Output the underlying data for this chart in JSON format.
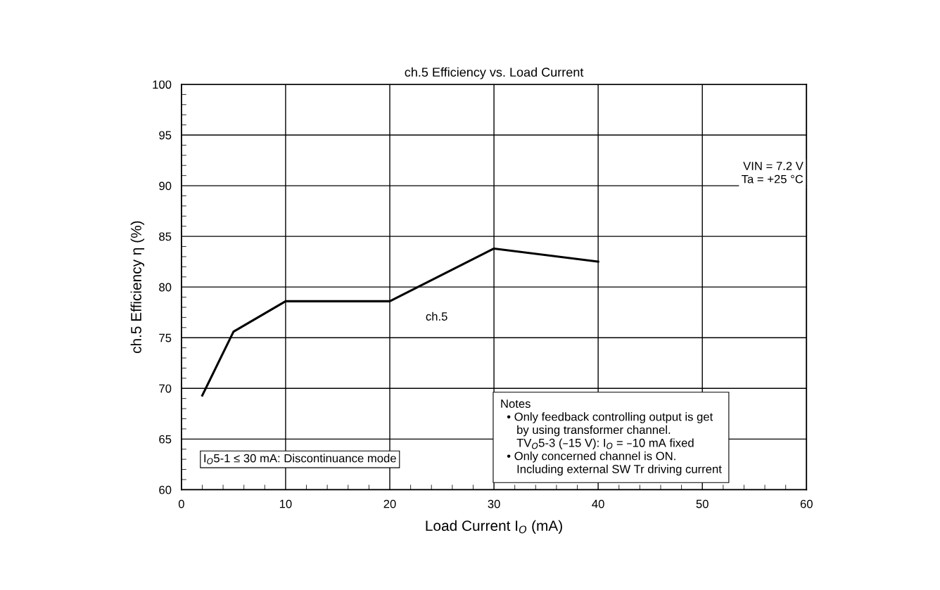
{
  "chart_data": {
    "type": "line",
    "title": "ch.5 Efficiency vs. Load Current",
    "xlabel": "Load Current I$_{O}$ (mA)",
    "ylabel": "ch.5 Efficiency η (%)",
    "x": [
      2,
      5,
      10,
      20,
      30,
      40
    ],
    "series": [
      {
        "name": "ch.5",
        "color": "#000000",
        "values": [
          69.3,
          75.6,
          78.6,
          78.6,
          83.8,
          82.5
        ]
      }
    ],
    "xlim": [
      0,
      60
    ],
    "xticks": [
      0,
      10,
      20,
      30,
      40,
      50,
      60
    ],
    "ylim": [
      60,
      100
    ],
    "yticks": [
      60,
      65,
      70,
      75,
      80,
      85,
      90,
      95,
      100
    ],
    "grid": true,
    "marker": "none",
    "line_style": "solid",
    "annotations": [
      "VIN = 7.2 V\nTa = +25 °C",
      "I$_{O}$5-1 ≤ 30 mA: Discontinuance mode",
      "Notes\n  • Only feedback controlling output is get\n     by using transformer channel.\n     TV$_{O}$5-3 (–15 V): I$_{O}$ = –10 mA fixed\n  • Only concerned channel is ON.\n     Including external SW Tr driving current"
    ]
  }
}
